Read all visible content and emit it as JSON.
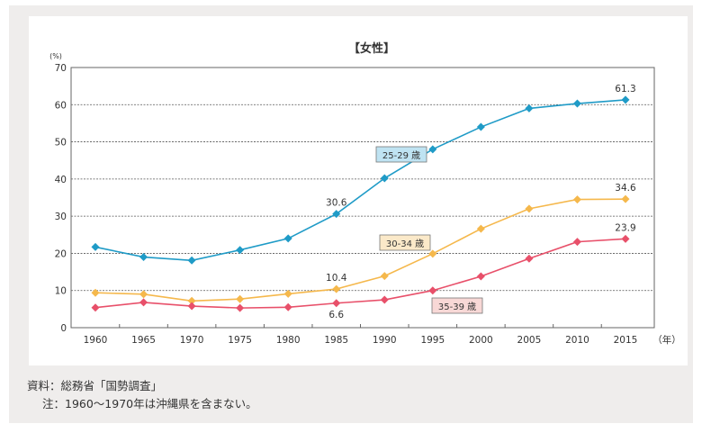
{
  "chart_data": {
    "type": "line",
    "title": "【女性】",
    "ylabel": "(%)",
    "xlabel": "（年）",
    "ylim": [
      0,
      70
    ],
    "yticks": [
      0,
      10,
      20,
      30,
      40,
      50,
      60,
      70
    ],
    "grid": "horizontal dashed",
    "categories": [
      "1960",
      "1965",
      "1970",
      "1975",
      "1980",
      "1985",
      "1990",
      "1995",
      "2000",
      "2005",
      "2010",
      "2015"
    ],
    "series": [
      {
        "name": "25-29 歳",
        "color": "#1f9bc7",
        "label_bg": "#bfe3f2",
        "values": [
          21.7,
          19.0,
          18.1,
          20.9,
          24.0,
          30.6,
          40.2,
          48.0,
          54.0,
          59.0,
          60.3,
          61.3
        ],
        "data_labels": {
          "1985": "30.6",
          "2015": "61.3"
        }
      },
      {
        "name": "30-34 歳",
        "color": "#f5b84c",
        "label_bg": "#fbe9c9",
        "values": [
          9.4,
          9.0,
          7.2,
          7.7,
          9.1,
          10.4,
          13.9,
          19.9,
          26.6,
          32.0,
          34.5,
          34.6
        ],
        "data_labels": {
          "1985": "10.4",
          "2015": "34.6"
        }
      },
      {
        "name": "35-39 歳",
        "color": "#e8506a",
        "label_bg": "#f8d8d6",
        "values": [
          5.4,
          6.8,
          5.8,
          5.3,
          5.5,
          6.6,
          7.5,
          10.0,
          13.8,
          18.6,
          23.1,
          23.9
        ],
        "data_labels": {
          "1985": "6.6",
          "2015": "23.9"
        }
      }
    ]
  },
  "notes": {
    "source": "資料：総務省「国勢調査」",
    "note": "注：1960〜1970年は沖縄県を含まない。"
  }
}
